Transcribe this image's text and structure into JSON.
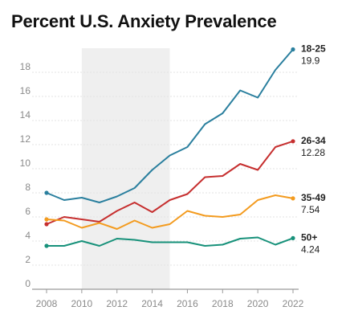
{
  "chart_data": {
    "type": "line",
    "title": "Percent U.S. Anxiety Prevalence",
    "xlabel": "",
    "ylabel": "",
    "x": [
      2008,
      2009,
      2010,
      2011,
      2012,
      2013,
      2014,
      2015,
      2016,
      2017,
      2018,
      2019,
      2020,
      2021,
      2022
    ],
    "xlim": [
      2008,
      2022
    ],
    "ylim": [
      0,
      20
    ],
    "xticks": [
      "2008",
      "2010",
      "2012",
      "2014",
      "2016",
      "2018",
      "2020",
      "2022"
    ],
    "yticks": [
      "0",
      "2",
      "4",
      "6",
      "8",
      "10",
      "12",
      "14",
      "16",
      "18"
    ],
    "grid": "horizontal",
    "shaded_region": {
      "x_start": 2010,
      "x_end": 2015,
      "color": "#efefef"
    },
    "series": [
      {
        "name": "18-25",
        "end_value_label": "19.9",
        "color": "#2a7f9e",
        "values": [
          8.0,
          7.4,
          7.6,
          7.2,
          7.7,
          8.4,
          9.9,
          11.1,
          11.8,
          13.7,
          14.6,
          16.5,
          15.9,
          18.2,
          19.9
        ]
      },
      {
        "name": "26-34",
        "end_value_label": "12.28",
        "color": "#c62f2f",
        "values": [
          5.4,
          6.0,
          5.8,
          5.6,
          6.5,
          7.2,
          6.4,
          7.4,
          7.9,
          9.3,
          9.4,
          10.4,
          9.9,
          11.8,
          12.28
        ]
      },
      {
        "name": "35-49",
        "end_value_label": "7.54",
        "color": "#f39b1f",
        "values": [
          5.8,
          5.7,
          5.1,
          5.5,
          5.0,
          5.7,
          5.1,
          5.4,
          6.5,
          6.1,
          6.0,
          6.2,
          7.4,
          7.8,
          7.54
        ]
      },
      {
        "name": "50+",
        "end_value_label": "4.24",
        "color": "#17917a",
        "values": [
          3.6,
          3.6,
          4.0,
          3.6,
          4.2,
          4.1,
          3.9,
          3.9,
          3.9,
          3.6,
          3.7,
          4.2,
          4.3,
          3.7,
          4.24
        ]
      }
    ]
  }
}
